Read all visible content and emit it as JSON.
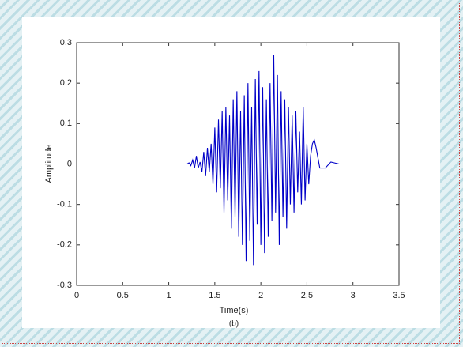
{
  "chart_data": {
    "type": "line",
    "xlabel": "Time(s)",
    "ylabel": "Amplitude",
    "caption": "(b)",
    "xlim": [
      0,
      3.5
    ],
    "xticks": [
      0,
      0.5,
      1,
      1.5,
      2,
      2.5,
      3,
      3.5
    ],
    "ylim": [
      -0.3,
      0.3
    ],
    "yticks": [
      0.3,
      0.2,
      0.1,
      0,
      -0.1,
      -0.2,
      -0.3
    ],
    "series": [
      {
        "color": "#0000c8",
        "x": [
          0,
          1.15,
          1.2,
          1.22,
          1.24,
          1.26,
          1.28,
          1.3,
          1.32,
          1.34,
          1.36,
          1.38,
          1.4,
          1.42,
          1.44,
          1.46,
          1.48,
          1.5,
          1.52,
          1.54,
          1.56,
          1.58,
          1.6,
          1.62,
          1.64,
          1.66,
          1.68,
          1.7,
          1.72,
          1.74,
          1.76,
          1.78,
          1.8,
          1.82,
          1.84,
          1.86,
          1.88,
          1.9,
          1.92,
          1.94,
          1.96,
          1.98,
          2.0,
          2.02,
          2.04,
          2.06,
          2.08,
          2.1,
          2.12,
          2.14,
          2.16,
          2.18,
          2.2,
          2.22,
          2.24,
          2.26,
          2.28,
          2.3,
          2.32,
          2.34,
          2.36,
          2.38,
          2.4,
          2.42,
          2.44,
          2.46,
          2.48,
          2.5,
          2.52,
          2.54,
          2.56,
          2.58,
          2.6,
          2.64,
          2.7,
          2.76,
          2.85,
          3.5
        ],
        "values": [
          0,
          0,
          0,
          0.003,
          -0.004,
          0.01,
          -0.01,
          0.02,
          -0.01,
          0.005,
          -0.02,
          0.03,
          -0.03,
          0.04,
          -0.02,
          0.05,
          -0.05,
          0.09,
          -0.07,
          0.11,
          -0.06,
          0.13,
          -0.12,
          0.14,
          -0.09,
          0.12,
          -0.16,
          0.16,
          -0.13,
          0.18,
          -0.18,
          0.13,
          -0.2,
          0.17,
          -0.24,
          0.2,
          -0.19,
          0.14,
          -0.25,
          0.21,
          -0.15,
          0.23,
          -0.2,
          0.19,
          -0.22,
          0.16,
          -0.18,
          0.2,
          -0.14,
          0.27,
          -0.12,
          0.22,
          -0.2,
          0.18,
          -0.13,
          0.16,
          -0.16,
          0.14,
          -0.1,
          0.12,
          -0.12,
          0.13,
          -0.07,
          0.08,
          -0.1,
          0.14,
          -0.09,
          0.05,
          -0.05,
          0.02,
          0.05,
          0.06,
          0.04,
          -0.01,
          -0.01,
          0.005,
          0,
          0
        ]
      }
    ]
  }
}
